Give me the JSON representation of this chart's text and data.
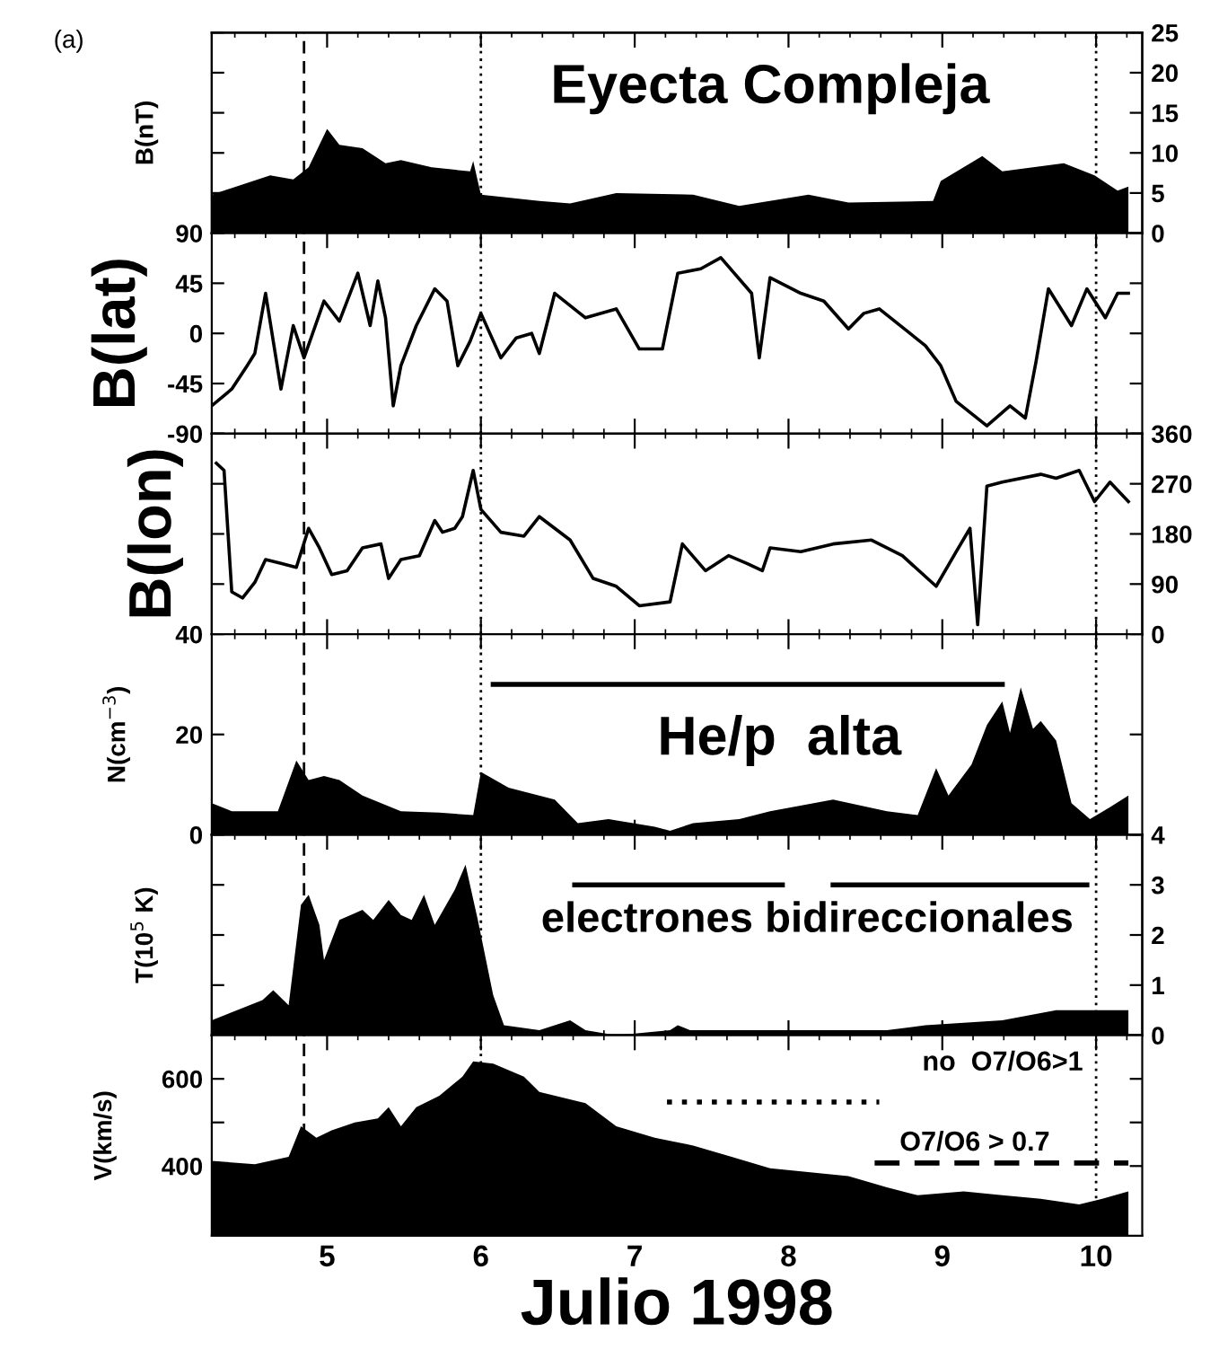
{
  "chart_data": [
    {
      "type": "area",
      "title": "(a)",
      "ylabel": "B(nT)",
      "xlim": [
        4.25,
        10.3
      ],
      "xticks": [
        5,
        6,
        7,
        8,
        9,
        10
      ],
      "y2lim": [
        0,
        25
      ],
      "y2ticks": [
        0,
        5,
        10,
        15,
        20,
        25
      ],
      "tick_labels": "y",
      "grid": false,
      "annotations": [
        "Eyecta Compleja"
      ],
      "ref_lines": [
        {
          "axis": "x",
          "value": 4.85,
          "line_style": "dashed",
          "color": "#000000"
        },
        {
          "axis": "x",
          "value": 6.0,
          "line_style": "dotted",
          "color": "#000000"
        },
        {
          "axis": "x",
          "value": 10.0,
          "line_style": "dotted",
          "color": "#000000"
        }
      ],
      "series": [
        {
          "color": "#000000",
          "axis": "y2",
          "x": [
            4.25,
            4.63,
            4.78,
            4.88,
            5.0,
            5.08,
            5.23,
            5.38,
            5.48,
            5.68,
            5.93,
            5.95,
            6.0,
            6.38,
            6.58,
            6.88,
            7.38,
            7.68,
            8.13,
            8.39,
            8.94,
            8.99,
            9.26,
            9.39,
            9.79,
            9.99,
            10.14,
            10.21
          ],
          "values": [
            4.8,
            7.2,
            6.7,
            8.2,
            13,
            11,
            10.6,
            8.7,
            9.1,
            8.2,
            7.7,
            9,
            4.8,
            4,
            3.7,
            5,
            4.8,
            3.4,
            4.8,
            3.8,
            4,
            6.5,
            9.6,
            7.7,
            8.7,
            7.2,
            5.3,
            5.8
          ]
        }
      ]
    },
    {
      "type": "line",
      "ylabel": "B(lat)",
      "xlim": [
        4.25,
        10.3
      ],
      "xticks": [
        5,
        6,
        7,
        8,
        9,
        10
      ],
      "ylim": [
        -90,
        90
      ],
      "yticks": [
        90,
        45,
        0,
        -45,
        -90
      ],
      "tick_labels": "y",
      "grid": false,
      "ref_lines": [
        {
          "axis": "x",
          "value": 4.85,
          "line_style": "dashed",
          "color": "#000000"
        },
        {
          "axis": "x",
          "value": 6.0,
          "line_style": "dotted",
          "color": "#000000"
        },
        {
          "axis": "x",
          "value": 10.0,
          "line_style": "dotted",
          "color": "#000000"
        }
      ],
      "series": [
        {
          "color": "#000000",
          "x": [
            4.25,
            4.38,
            4.48,
            4.53,
            4.6,
            4.7,
            4.78,
            4.85,
            4.98,
            5.08,
            5.2,
            5.28,
            5.33,
            5.38,
            5.43,
            5.48,
            5.58,
            5.7,
            5.78,
            5.85,
            5.93,
            6.0,
            6.13,
            6.23,
            6.33,
            6.38,
            6.48,
            6.68,
            6.88,
            7.03,
            7.18,
            7.28,
            7.43,
            7.56,
            7.76,
            7.81,
            7.88,
            8.08,
            8.23,
            8.39,
            8.49,
            8.59,
            8.89,
            8.99,
            9.09,
            9.29,
            9.44,
            9.54,
            9.61,
            9.69,
            9.84,
            9.94,
            10.06,
            10.14,
            10.21
          ],
          "values": [
            -65,
            -50,
            -29,
            -18,
            36,
            -50,
            7,
            -22,
            29,
            11,
            54,
            7,
            47,
            14,
            -65,
            -29,
            7,
            40,
            29,
            -29,
            -7,
            18,
            -22,
            -4,
            0,
            -18,
            36,
            14,
            22,
            -14,
            -14,
            54,
            58,
            68,
            36,
            -22,
            50,
            36,
            29,
            4,
            18,
            22,
            -11,
            -29,
            -61,
            -83,
            -65,
            -76,
            -25,
            40,
            7,
            40,
            14,
            36,
            36
          ]
        }
      ]
    },
    {
      "type": "line",
      "ylabel": "B(lon)",
      "xlim": [
        4.25,
        10.3
      ],
      "xticks": [
        5,
        6,
        7,
        8,
        9,
        10
      ],
      "y2lim": [
        0,
        360
      ],
      "y2ticks": [
        0,
        90,
        180,
        270,
        360
      ],
      "tick_labels": "y",
      "grid": false,
      "ref_lines": [
        {
          "axis": "x",
          "value": 4.85,
          "line_style": "dashed",
          "color": "#000000"
        },
        {
          "axis": "x",
          "value": 6.0,
          "line_style": "dotted",
          "color": "#000000"
        },
        {
          "axis": "x",
          "value": 10.0,
          "line_style": "dotted",
          "color": "#000000"
        }
      ],
      "series": [
        {
          "color": "#000000",
          "axis": "y2",
          "x": [
            4.28,
            4.33,
            4.38,
            4.45,
            4.53,
            4.6,
            4.7,
            4.8,
            4.88,
            4.95,
            5.03,
            5.13,
            5.23,
            5.35,
            5.4,
            5.48,
            5.6,
            5.7,
            5.75,
            5.83,
            5.88,
            5.95,
            6.0,
            6.13,
            6.28,
            6.38,
            6.58,
            6.73,
            6.88,
            7.03,
            7.23,
            7.31,
            7.46,
            7.61,
            7.73,
            7.83,
            7.88,
            8.08,
            8.29,
            8.54,
            8.74,
            8.96,
            9.09,
            9.18,
            9.23,
            9.29,
            9.39,
            9.64,
            9.74,
            9.89,
            9.99,
            10.09,
            10.21
          ],
          "values": [
            307,
            294,
            76,
            65,
            93,
            134,
            127,
            120,
            190,
            155,
            107,
            114,
            155,
            162,
            100,
            134,
            141,
            204,
            183,
            190,
            211,
            294,
            224,
            183,
            176,
            211,
            169,
            100,
            86,
            51,
            58,
            162,
            114,
            141,
            127,
            114,
            155,
            148,
            162,
            169,
            141,
            86,
            148,
            190,
            17,
            266,
            273,
            287,
            280,
            294,
            238,
            273,
            238
          ]
        }
      ]
    },
    {
      "type": "area",
      "ylabel": "N(cm$^{−3}$)",
      "xlim": [
        4.25,
        10.3
      ],
      "xticks": [
        5,
        6,
        7,
        8,
        9,
        10
      ],
      "ylim": [
        0,
        40
      ],
      "yticks": [
        0,
        20,
        40
      ],
      "tick_labels": "y",
      "grid": false,
      "annotations": [
        "He/p  alta"
      ],
      "ref_lines": [
        {
          "axis": "x",
          "value": 4.85,
          "line_style": "dashed",
          "color": "#000000"
        },
        {
          "axis": "x",
          "value": 6.0,
          "line_style": "dotted",
          "color": "#000000"
        },
        {
          "axis": "x",
          "value": 10.0,
          "line_style": "dotted",
          "color": "#000000"
        }
      ],
      "series": [
        {
          "color": "#000000",
          "x": [
            4.25,
            4.38,
            4.68,
            4.8,
            4.88,
            4.98,
            5.08,
            5.23,
            5.48,
            5.73,
            5.95,
            6.0,
            6.18,
            6.48,
            6.63,
            6.83,
            7.13,
            7.23,
            7.38,
            7.68,
            7.88,
            8.29,
            8.64,
            8.84,
            8.96,
            9.04,
            9.19,
            9.29,
            9.39,
            9.44,
            9.51,
            9.59,
            9.64,
            9.74,
            9.84,
            9.96,
            10.09,
            10.21
          ],
          "values": [
            6.3,
            4.7,
            4.7,
            14.8,
            10.9,
            11.7,
            10.9,
            7.8,
            4.7,
            4.4,
            3.9,
            12.5,
            9.4,
            7,
            2.3,
            3.1,
            1.6,
            0.8,
            2.3,
            3.1,
            4.7,
            7,
            4.7,
            3.9,
            13.3,
            7.8,
            14,
            21.9,
            26.6,
            20.3,
            29.4,
            21.1,
            22.7,
            18.8,
            6.3,
            3.1,
            5.5,
            7.8
          ]
        },
        {
          "type": "line",
          "line_style": "solid",
          "color": "#000000",
          "x": [
            6.08,
            9.39
          ],
          "values": [
            30,
            30
          ]
        }
      ]
    },
    {
      "type": "area",
      "ylabel": "T(10$^{5}$ K)",
      "xlim": [
        4.25,
        10.3
      ],
      "xticks": [
        5,
        6,
        7,
        8,
        9,
        10
      ],
      "y2lim": [
        0,
        4
      ],
      "y2ticks": [
        0,
        1,
        2,
        3,
        4
      ],
      "tick_labels": "y",
      "grid": false,
      "annotations": [
        "electrones bidireccionales"
      ],
      "ref_lines": [
        {
          "axis": "x",
          "value": 4.85,
          "line_style": "dashed",
          "color": "#000000"
        },
        {
          "axis": "x",
          "value": 6.0,
          "line_style": "dotted",
          "color": "#000000"
        },
        {
          "axis": "x",
          "value": 10.0,
          "line_style": "dotted",
          "color": "#000000"
        }
      ],
      "series": [
        {
          "color": "#000000",
          "axis": "y2",
          "x": [
            4.25,
            4.58,
            4.65,
            4.75,
            4.83,
            4.88,
            4.95,
            4.98,
            5.08,
            5.23,
            5.3,
            5.4,
            5.48,
            5.55,
            5.63,
            5.7,
            5.83,
            5.9,
            5.98,
            6.08,
            6.15,
            6.38,
            6.58,
            6.68,
            6.88,
            7.23,
            7.28,
            7.36,
            7.63,
            8.13,
            8.64,
            8.89,
            9.39,
            9.74,
            10.21
          ],
          "values": [
            0.3,
            0.7,
            0.9,
            0.6,
            2.6,
            2.8,
            2.2,
            1.5,
            2.3,
            2.5,
            2.3,
            2.7,
            2.4,
            2.3,
            2.8,
            2.2,
            2.9,
            3.4,
            2.3,
            0.8,
            0.2,
            0.1,
            0.3,
            0.1,
            0.0,
            0.1,
            0.2,
            0.1,
            0.1,
            0.1,
            0.1,
            0.2,
            0.3,
            0.5,
            0.5
          ]
        },
        {
          "type": "line",
          "axis": "y2",
          "line_style": "solid",
          "color": "#000000",
          "x": [
            6.61,
            7.96
          ],
          "values": [
            3,
            3
          ]
        },
        {
          "type": "line",
          "axis": "y2",
          "line_style": "solid",
          "color": "#000000",
          "x": [
            8.29,
            9.94
          ],
          "values": [
            3,
            3
          ]
        }
      ]
    },
    {
      "type": "area",
      "ylabel": "V(km/s)",
      "xlabel": "Julio 1998",
      "xlim": [
        4.25,
        10.3
      ],
      "xticks": [
        5,
        6,
        7,
        8,
        9,
        10
      ],
      "ylim": [
        240,
        700
      ],
      "yticks": [
        400,
        {
          "value": 500,
          "label": null
        },
        600
      ],
      "grid": false,
      "annotations": [
        "no  O7/O6>1",
        "O7/O6 > 0.7"
      ],
      "ref_lines": [
        {
          "axis": "x",
          "value": 4.85,
          "line_style": "dashed",
          "color": "#000000"
        },
        {
          "axis": "x",
          "value": 6.0,
          "line_style": "dotted",
          "color": "#000000"
        },
        {
          "axis": "x",
          "value": 10.0,
          "line_style": "dotted",
          "color": "#000000"
        }
      ],
      "series": [
        {
          "color": "#000000",
          "x": [
            4.25,
            4.53,
            4.75,
            4.83,
            4.93,
            5.03,
            5.18,
            5.33,
            5.4,
            5.48,
            5.58,
            5.73,
            5.88,
            5.95,
            6.08,
            6.28,
            6.38,
            6.68,
            6.88,
            7.13,
            7.38,
            7.63,
            7.88,
            8.39,
            8.64,
            8.84,
            9.14,
            9.39,
            9.64,
            9.89,
            10.04,
            10.21
          ],
          "values": [
            412,
            404,
            421,
            491,
            465,
            482,
            500,
            509,
            535,
            491,
            535,
            561,
            605,
            640,
            635,
            605,
            570,
            544,
            491,
            465,
            447,
            421,
            395,
            377,
            351,
            333,
            342,
            333,
            325,
            312,
            325,
            342
          ]
        },
        {
          "type": "line",
          "line_style": "dotted",
          "color": "#000000",
          "x": [
            7.21,
            8.59
          ],
          "values": [
            547,
            547
          ]
        },
        {
          "type": "line",
          "line_style": "dashed",
          "color": "#000000",
          "x": [
            8.56,
            10.21
          ],
          "values": [
            407,
            407
          ]
        }
      ]
    }
  ]
}
